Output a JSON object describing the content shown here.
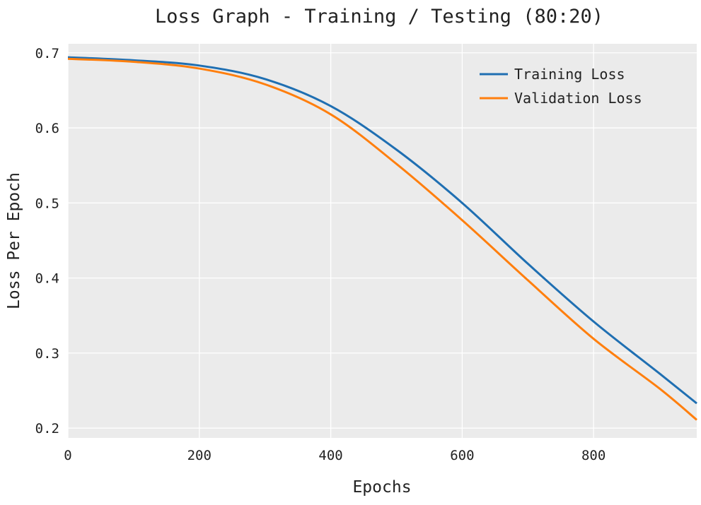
{
  "chart_data": {
    "type": "line",
    "title": "Loss Graph - Training / Testing (80:20)",
    "xlabel": "Epochs",
    "ylabel": "Loss Per Epoch",
    "xlim": [
      0,
      957
    ],
    "ylim": [
      0.187,
      0.712
    ],
    "xticks": [
      0,
      200,
      400,
      600,
      800
    ],
    "yticks": [
      0.2,
      0.3,
      0.4,
      0.5,
      0.6,
      0.7
    ],
    "grid": true,
    "legend_position": "top-right",
    "x": [
      0,
      100,
      200,
      300,
      400,
      500,
      600,
      700,
      800,
      900,
      957
    ],
    "series": [
      {
        "name": "Training Loss",
        "color": "#1f6fb2",
        "values": [
          0.694,
          0.69,
          0.683,
          0.665,
          0.629,
          0.571,
          0.5,
          0.419,
          0.342,
          0.273,
          0.233
        ]
      },
      {
        "name": "Validation Loss",
        "color": "#ff7f0e",
        "values": [
          0.692,
          0.688,
          0.679,
          0.658,
          0.618,
          0.552,
          0.477,
          0.397,
          0.319,
          0.253,
          0.211
        ]
      }
    ]
  }
}
